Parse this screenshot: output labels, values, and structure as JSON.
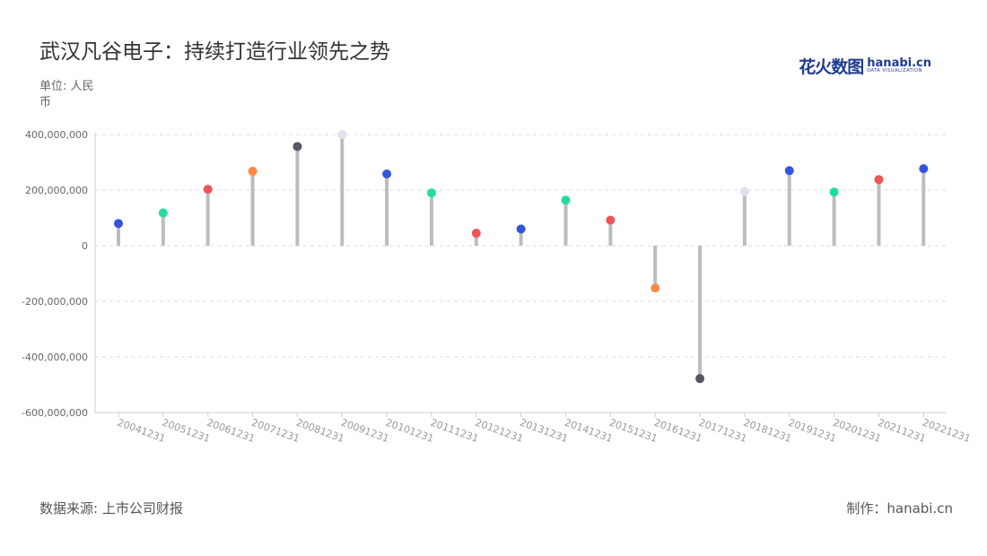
{
  "header": {
    "title": "武汉凡谷电子：持续打造行业领先之势",
    "unit_label": "单位: 人民币"
  },
  "logo": {
    "name": "花火数图",
    "domain": "hanabi.cn",
    "tagline": "DATA VISUALIZATION"
  },
  "footer": {
    "source": "数据来源: 上市公司财报",
    "credit": "制作：hanabi.cn"
  },
  "colors": {
    "stem": "#bdbdbd",
    "grid": "#dddddd",
    "axis_text": "#666666",
    "tick_text": "#999999",
    "palette": [
      "#3355dd",
      "#22dd99",
      "#ee5555",
      "#ff8844",
      "#555566",
      "#dde2ee"
    ]
  },
  "chart_data": {
    "type": "lollipop",
    "title": "武汉凡谷电子：持续打造行业领先之势",
    "ylabel": "单位: 人民币",
    "ylim": [
      -600000000,
      400000000
    ],
    "yticks": [
      400000000,
      200000000,
      0,
      -200000000,
      -400000000,
      -600000000
    ],
    "ytick_labels": [
      "400,000,000",
      "200,000,000",
      "0",
      "-200,000,000",
      "-400,000,000",
      "-600,000,000"
    ],
    "grid": true,
    "categories": [
      "20041231",
      "20051231",
      "20061231",
      "20071231",
      "20081231",
      "20091231",
      "20101231",
      "20111231",
      "20121231",
      "20131231",
      "20141231",
      "20151231",
      "20161231",
      "20171231",
      "20181231",
      "20191231",
      "20201231",
      "20211231",
      "20221231"
    ],
    "values": [
      80000000,
      118000000,
      203000000,
      268000000,
      357000000,
      400000000,
      258000000,
      190000000,
      45000000,
      60000000,
      164000000,
      92000000,
      -152000000,
      -478000000,
      195000000,
      270000000,
      193000000,
      238000000,
      277000000
    ],
    "point_colors": [
      "#3355dd",
      "#22dd99",
      "#ee5555",
      "#ff8844",
      "#555566",
      "#dde2ee",
      "#3355dd",
      "#22dd99",
      "#ee5555",
      "#3355dd",
      "#22dd99",
      "#ee5555",
      "#ff8844",
      "#555566",
      "#dde2ee",
      "#3355dd",
      "#22dd99",
      "#ee5555",
      "#3355dd"
    ]
  }
}
